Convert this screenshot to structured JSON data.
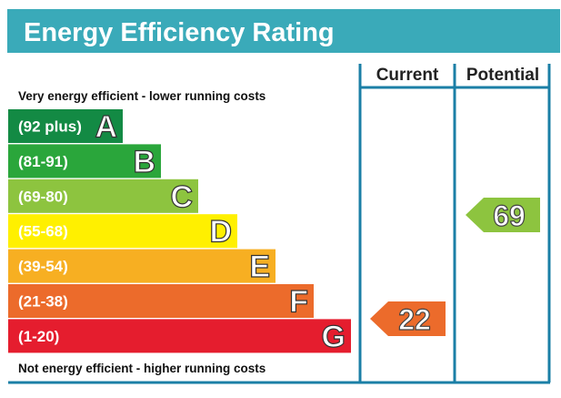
{
  "title": "Energy Efficiency Rating",
  "columns": {
    "current": "Current",
    "potential": "Potential"
  },
  "top_caption": "Very energy efficient - lower running costs",
  "bottom_caption": "Not energy efficient - higher running costs",
  "colors": {
    "title_bg": "#3aaab9",
    "frame": "#1b7fa6"
  },
  "bands": [
    {
      "range": "(92 plus)",
      "letter": "A",
      "color": "#138a44"
    },
    {
      "range": "(81-91)",
      "letter": "B",
      "color": "#2aa63b"
    },
    {
      "range": "(69-80)",
      "letter": "C",
      "color": "#8dc43f"
    },
    {
      "range": "(55-68)",
      "letter": "D",
      "color": "#fff000"
    },
    {
      "range": "(39-54)",
      "letter": "E",
      "color": "#f7af22"
    },
    {
      "range": "(21-38)",
      "letter": "F",
      "color": "#ec6b2b"
    },
    {
      "range": "(1-20)",
      "letter": "G",
      "color": "#e51d2e"
    }
  ],
  "current": {
    "value": "22",
    "band": "F",
    "color": "#ec6b2b"
  },
  "potential": {
    "value": "69",
    "band": "C",
    "color": "#8dc43f"
  }
}
